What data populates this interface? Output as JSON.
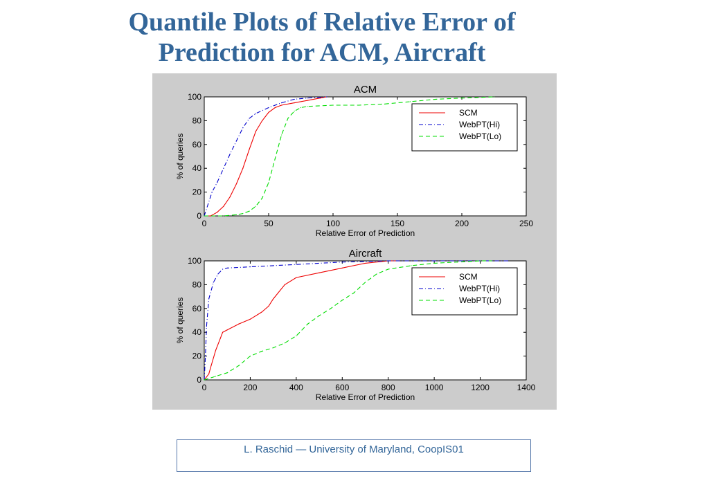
{
  "slide": {
    "title_line1": "Quantile Plots of Relative Error of",
    "title_line2": "Prediction for  ACM, Aircraft",
    "footer": "L. Raschid — University of Maryland, CoopIS01"
  },
  "colors": {
    "title": "#336699",
    "figure_background": "#cccccc",
    "SCM": "#ee0000",
    "WebPT(Hi)": "#0000cc",
    "WebPT(Lo)": "#00dd00"
  },
  "chart_data": [
    {
      "type": "line",
      "title": "ACM",
      "xlabel": "Relative Error of Prediction",
      "ylabel": "% of queries",
      "xlim": [
        0,
        250
      ],
      "ylim": [
        0,
        100
      ],
      "xticks": [
        "0",
        "50",
        "100",
        "150",
        "200",
        "250"
      ],
      "yticks": [
        "0",
        "20",
        "40",
        "60",
        "80",
        "100"
      ],
      "grid": false,
      "legend_position": "top-right",
      "series": [
        {
          "name": "SCM",
          "style": "solid",
          "x": [
            0,
            5,
            10,
            15,
            20,
            25,
            30,
            35,
            40,
            45,
            50,
            55,
            60,
            70,
            80,
            90,
            95
          ],
          "y": [
            0,
            0,
            3,
            8,
            16,
            27,
            40,
            56,
            71,
            80,
            87,
            91,
            93,
            95,
            97,
            99,
            100
          ]
        },
        {
          "name": "WebPT(Hi)",
          "style": "dashdot",
          "x": [
            0,
            3,
            6,
            10,
            15,
            20,
            25,
            30,
            35,
            40,
            50,
            60,
            70,
            80,
            95
          ],
          "y": [
            0,
            10,
            20,
            28,
            40,
            52,
            63,
            74,
            82,
            86,
            91,
            95,
            98,
            99,
            100
          ]
        },
        {
          "name": "WebPT(Lo)",
          "style": "dashed",
          "x": [
            0,
            15,
            25,
            30,
            35,
            40,
            45,
            50,
            55,
            60,
            65,
            70,
            75,
            80,
            100,
            120,
            140,
            160,
            180,
            200,
            225
          ],
          "y": [
            0,
            0,
            1,
            2,
            4,
            8,
            15,
            28,
            48,
            68,
            82,
            88,
            91,
            92,
            93,
            93,
            94,
            96,
            98,
            99,
            100
          ]
        }
      ]
    },
    {
      "type": "line",
      "title": "Aircraft",
      "xlabel": "Relative Error of Prediction",
      "ylabel": "% of queries",
      "xlim": [
        0,
        1400
      ],
      "ylim": [
        0,
        100
      ],
      "xticks": [
        "0",
        "200",
        "400",
        "600",
        "800",
        "1000",
        "1200",
        "1400"
      ],
      "yticks": [
        "0",
        "20",
        "40",
        "60",
        "80",
        "100"
      ],
      "grid": false,
      "legend_position": "top-right",
      "series": [
        {
          "name": "SCM",
          "style": "solid",
          "x": [
            0,
            20,
            30,
            50,
            70,
            80,
            100,
            150,
            200,
            250,
            280,
            300,
            350,
            400,
            500,
            600,
            700,
            800,
            850
          ],
          "y": [
            0,
            5,
            12,
            25,
            35,
            40,
            42,
            47,
            51,
            57,
            62,
            68,
            80,
            86,
            90,
            94,
            98,
            100,
            100
          ]
        },
        {
          "name": "WebPT(Hi)",
          "style": "dashdot",
          "x": [
            0,
            5,
            10,
            20,
            40,
            60,
            80,
            100,
            200,
            300,
            400,
            600,
            800,
            1000,
            1200,
            1320
          ],
          "y": [
            0,
            20,
            45,
            68,
            82,
            89,
            93,
            94,
            95,
            96,
            97,
            99,
            100,
            100,
            100,
            100
          ]
        },
        {
          "name": "WebPT(Lo)",
          "style": "dashed",
          "x": [
            0,
            50,
            100,
            150,
            200,
            250,
            300,
            350,
            400,
            450,
            500,
            550,
            600,
            650,
            700,
            750,
            800,
            900,
            1000,
            1100,
            1200,
            1250
          ],
          "y": [
            0,
            3,
            6,
            12,
            20,
            24,
            27,
            31,
            37,
            47,
            54,
            60,
            67,
            73,
            82,
            89,
            93,
            96,
            98,
            99,
            100,
            100
          ]
        }
      ]
    }
  ]
}
